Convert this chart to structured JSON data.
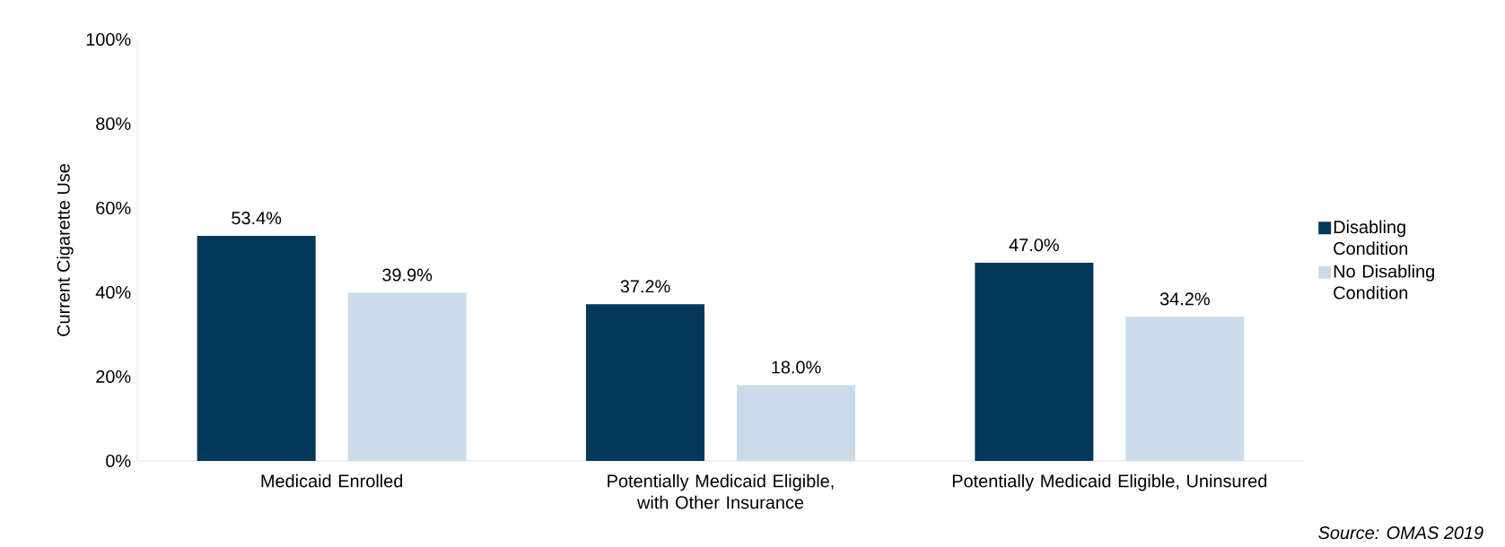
{
  "chart_data": {
    "type": "bar",
    "ylabel": "Current Cigarette Use",
    "categories": [
      "Medicaid Enrolled",
      "Potentially Medicaid Eligible, with Other Insurance",
      "Potentially Medicaid Eligible, Uninsured"
    ],
    "series": [
      {
        "name": "Disabling Condition",
        "color": "#033859",
        "values": [
          53.4,
          37.2,
          47.0
        ],
        "value_labels": [
          "53.4%",
          "37.2%",
          "47.0%"
        ]
      },
      {
        "name": "No Disabling Condition",
        "color": "#ccdbea",
        "values": [
          39.9,
          18.0,
          34.2
        ],
        "value_labels": [
          "39.9%",
          "18.0%",
          "34.2%"
        ]
      }
    ],
    "ylim": [
      0,
      100
    ],
    "yticks": [
      {
        "value": 0,
        "label": "0%"
      },
      {
        "value": 20,
        "label": "20%"
      },
      {
        "value": 40,
        "label": "40%"
      },
      {
        "value": 60,
        "label": "60%"
      },
      {
        "value": 80,
        "label": "80%"
      },
      {
        "value": 100,
        "label": "100%"
      }
    ],
    "legend": "right",
    "grid": false,
    "annotations": [
      "*Source: OMAS 2019*"
    ]
  }
}
